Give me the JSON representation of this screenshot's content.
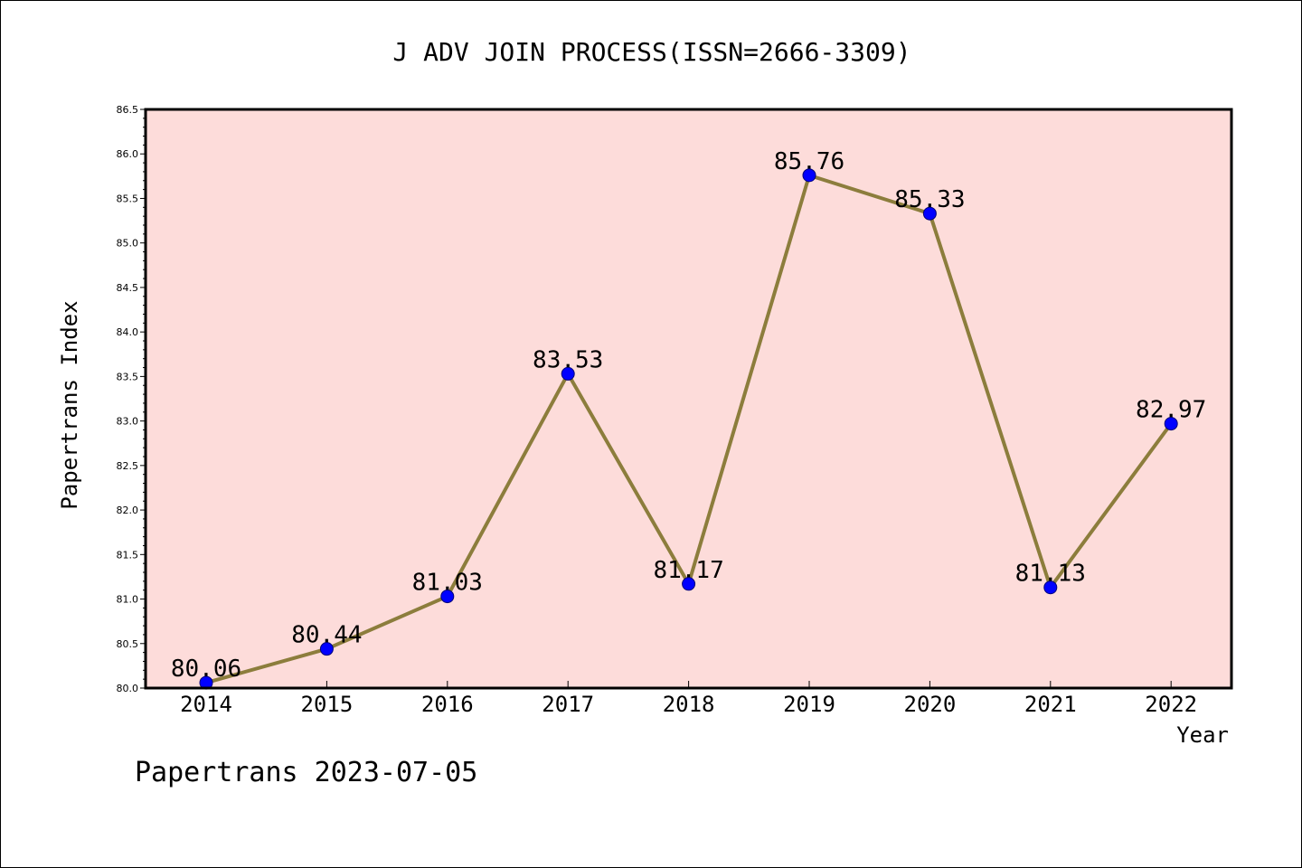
{
  "chart_data": {
    "type": "line",
    "title": "J ADV JOIN PROCESS(ISSN=2666-3309)",
    "xlabel": "Year",
    "ylabel": "Papertrans Index",
    "footer": "Papertrans 2023-07-05",
    "categories": [
      "2014",
      "2015",
      "2016",
      "2017",
      "2018",
      "2019",
      "2020",
      "2021",
      "2022"
    ],
    "series": [
      {
        "values": [
          80.06,
          80.44,
          81.03,
          83.53,
          81.17,
          85.76,
          85.33,
          81.13,
          82.97
        ],
        "labels": [
          "80.06",
          "80.44",
          "81.03",
          "83.53",
          "81.17",
          "85.76",
          "85.33",
          "81.13",
          "82.97"
        ],
        "line_color": "#8c7d3c",
        "marker_color": "#0000ff"
      }
    ],
    "ylim": [
      80.0,
      86.5
    ],
    "yticks": [
      "80.0",
      "80.5",
      "81.0",
      "81.5",
      "82.0",
      "82.5",
      "83.0",
      "83.5",
      "84.0",
      "84.5",
      "85.0",
      "85.5",
      "86.0",
      "86.5"
    ],
    "ytick_values": [
      80.0,
      80.5,
      81.0,
      81.5,
      82.0,
      82.5,
      83.0,
      83.5,
      84.0,
      84.5,
      85.0,
      85.5,
      86.0,
      86.5
    ],
    "plot_background": "#fddcda",
    "grid": false
  }
}
